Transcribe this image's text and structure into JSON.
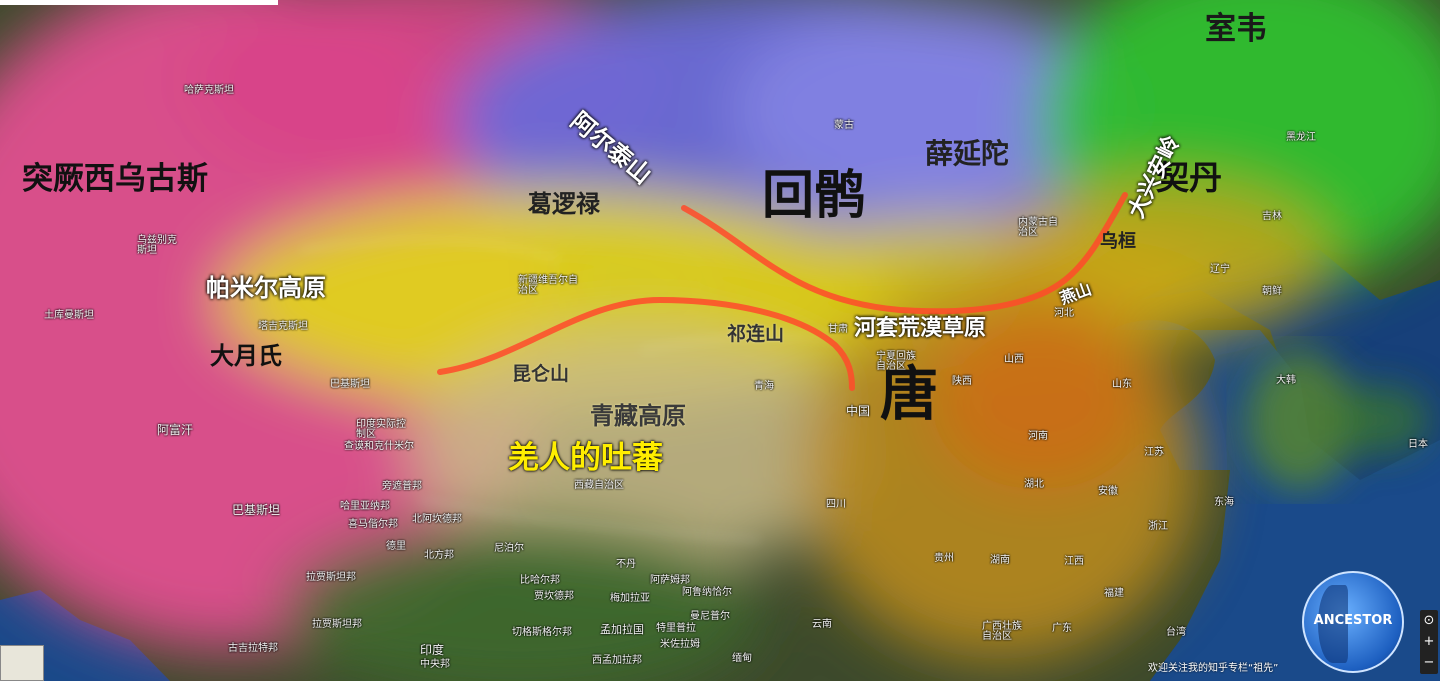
{
  "regions": {
    "western_turks": "突厥西乌古斯",
    "shiwei": "室韦",
    "uyghur": "回鹘",
    "xueyantuo": "薛延陀",
    "khitan": "契丹",
    "karluk": "葛逻禄",
    "pamir": "帕米尔高原",
    "yuezhi": "大月氏",
    "wuhuan": "乌桓",
    "tang": "唐",
    "qiang_tubo": "羌人的吐蕃"
  },
  "physical": {
    "altai": "阿尔泰山",
    "greater_khingan": "大兴安岭",
    "qilian": "祁连山",
    "hetao": "河套荒漠草原",
    "kunlun": "昆仑山",
    "yan_mountains": "燕山",
    "qinghai_tibet": "青藏高原"
  },
  "base_labels": {
    "kazakhstan": "哈萨克斯坦",
    "mongolia": "蒙古",
    "heilongjiang": "黑龙江",
    "jilin": "吉林",
    "inner_mongolia": "内蒙古自治区",
    "uzbekistan": "乌兹别克斯坦",
    "turkmenistan": "土库曼斯坦",
    "tajikistan": "塔吉克斯坦",
    "xinjiang": "新疆维吾尔自治区",
    "liaoning": "辽宁",
    "korea": "朝鲜",
    "south_korea": "大韩",
    "hebei": "河北",
    "gansu": "甘肃",
    "ningxia": "宁夏回族自治区",
    "shanxi": "山西",
    "shaanxi": "陕西",
    "shandong": "山东",
    "qinghai": "青海",
    "china": "中国",
    "henan": "河南",
    "afghanistan": "阿富汗",
    "pakistan_a": "巴基斯坦",
    "pakistan": "巴基斯坦",
    "kashmir": "印度实际控制区",
    "tibet": "西藏自治区",
    "anhui": "安徽",
    "jiangsu": "江苏",
    "hubei": "湖北",
    "zhejiang": "浙江",
    "sichuan": "四川",
    "jiangxi": "江西",
    "fujian": "福建",
    "guangdong": "广东",
    "guangxi": "广西壮族自治区",
    "guizhou": "贵州",
    "hunan": "湖南",
    "yunnan": "云南",
    "nepal": "尼泊尔",
    "bhutan": "不丹",
    "bangladesh": "孟加拉国",
    "india": "印度",
    "myanmar": "缅甸",
    "haryana": "哈里亚纳邦",
    "punjab": "旁遮普邦",
    "rajasthan": "拉贾斯坦邦",
    "uttar": "北方邦",
    "bihar": "比哈尔邦",
    "jharkhand": "贾坎德邦",
    "gujarat": "古吉拉特邦",
    "maharashtra": "切格斯格尔邦",
    "mizoram": "米佐拉姆",
    "tripura": "特里普拉",
    "west_bengal": "西孟加拉邦",
    "meghalaya": "梅加拉亚",
    "assam": "阿萨姆邦",
    "arunachal": "阿鲁纳恰尔",
    "manipur": "曼尼普尔",
    "middle": "中央邦",
    "japan": "日本",
    "taiwan": "台湾",
    "jammu": "查谟和克什米尔",
    "himachal": "喜马偕尔邦",
    "uttarakhand": "北阿坎德邦",
    "delhi": "德里",
    "rajasthan2": "拉贾斯坦邦",
    "east_sea": "东海"
  },
  "footer_text": "欢迎关注我的知乎专栏“祖先”",
  "logo_text": "ANCESTOR",
  "zoom": {
    "plus": "+",
    "minus": "−",
    "compass": "⊙"
  },
  "colors": {
    "west_magenta": "#e0508f",
    "north_blue": "#6a6ad8",
    "northeast_green": "#2fbf2f",
    "central_yellow": "#e0d21a",
    "tang_orange": "#c98a2a",
    "sea": "#17407a",
    "route_red": "#ff4a2a"
  }
}
